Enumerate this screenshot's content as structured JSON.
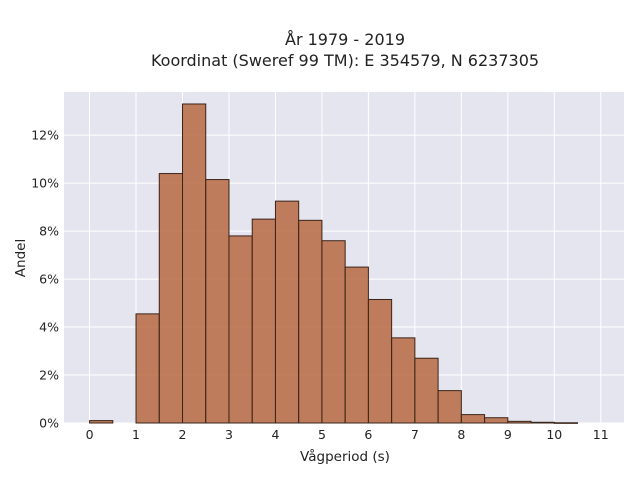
{
  "chart_data": {
    "type": "bar",
    "title_line1": "År 1979 - 2019",
    "title_line2": "Koordinat (Sweref 99 TM): E 354579, N 6237305",
    "xlabel": "Vågperiod (s)",
    "ylabel": "Andel",
    "bin_width": 0.5,
    "bins": [
      {
        "start": 0.0,
        "value": 0.1
      },
      {
        "start": 0.5,
        "value": 0.0
      },
      {
        "start": 1.0,
        "value": 4.55
      },
      {
        "start": 1.5,
        "value": 10.4
      },
      {
        "start": 2.0,
        "value": 13.3
      },
      {
        "start": 2.5,
        "value": 10.15
      },
      {
        "start": 3.0,
        "value": 7.8
      },
      {
        "start": 3.5,
        "value": 8.5
      },
      {
        "start": 4.0,
        "value": 9.25
      },
      {
        "start": 4.5,
        "value": 8.45
      },
      {
        "start": 5.0,
        "value": 7.6
      },
      {
        "start": 5.5,
        "value": 6.5
      },
      {
        "start": 6.0,
        "value": 5.15
      },
      {
        "start": 6.5,
        "value": 3.55
      },
      {
        "start": 7.0,
        "value": 2.7
      },
      {
        "start": 7.5,
        "value": 1.35
      },
      {
        "start": 8.0,
        "value": 0.35
      },
      {
        "start": 8.5,
        "value": 0.22
      },
      {
        "start": 9.0,
        "value": 0.07
      },
      {
        "start": 9.5,
        "value": 0.03
      },
      {
        "start": 10.0,
        "value": 0.01
      }
    ],
    "xlim": [
      -0.55,
      11.5
    ],
    "ylim": [
      0,
      13.8
    ],
    "x_ticks": [
      0,
      1,
      2,
      3,
      4,
      5,
      6,
      7,
      8,
      9,
      10,
      11
    ],
    "y_ticks": [
      0,
      2,
      4,
      6,
      8,
      10,
      12
    ],
    "y_tick_suffix": "%",
    "grid": true,
    "colors": {
      "plot_background": "#e5e5f0",
      "bar_fill": "#b5643a",
      "bar_edge": "#3a2418",
      "grid": "#ffffff"
    }
  }
}
